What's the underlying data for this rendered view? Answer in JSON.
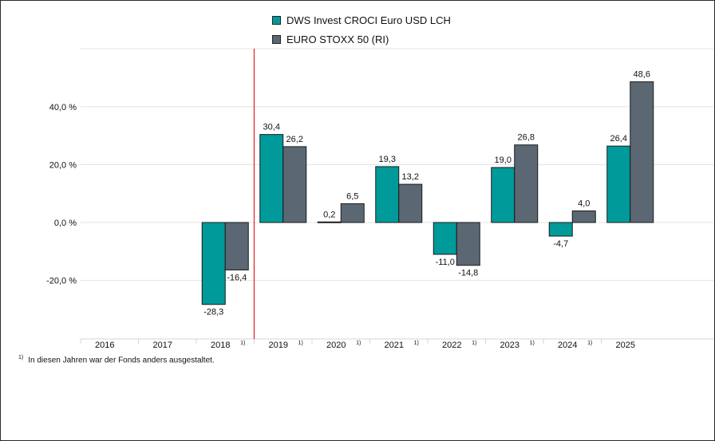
{
  "chart_data": {
    "type": "bar",
    "categories": [
      "2016",
      "2017",
      "2018",
      "2019",
      "2020",
      "2021",
      "2022",
      "2023",
      "2024",
      "2025"
    ],
    "category_notes": [
      "",
      "",
      "1)",
      "1)",
      "1)",
      "1)",
      "1)",
      "1)",
      "1)",
      ""
    ],
    "series": [
      {
        "name": "DWS Invest CROCI Euro USD LCH",
        "color": "#009a9a",
        "values": [
          null,
          null,
          -28.3,
          30.4,
          0.2,
          19.3,
          -11.0,
          19.0,
          -4.7,
          26.4
        ],
        "labels": [
          "",
          "",
          "-28,3",
          "30,4",
          "0,2",
          "19,3",
          "-11,0",
          "19,0",
          "-4,7",
          "26,4"
        ]
      },
      {
        "name": "EURO STOXX 50 (RI)",
        "color": "#5b6874",
        "values": [
          null,
          null,
          -16.4,
          26.2,
          6.5,
          13.2,
          -14.8,
          26.8,
          4.0,
          48.6
        ],
        "labels": [
          "",
          "",
          "-16,4",
          "26,2",
          "6,5",
          "13,2",
          "-14,8",
          "26,8",
          "4,0",
          "48,6"
        ]
      }
    ],
    "yticks": [
      {
        "value": 40,
        "label": "40,0 %"
      },
      {
        "value": 20,
        "label": "20,0 %"
      },
      {
        "value": 0,
        "label": "0,0 %"
      },
      {
        "value": -20,
        "label": "-20,0 %"
      }
    ],
    "ylim": [
      -40,
      60
    ],
    "grid": true,
    "legend_position": "top-center",
    "marker_line_after": "2018",
    "marker_color": "#e02020"
  },
  "footnote": {
    "marker": "1)",
    "text": "In diesen Jahren war der Fonds anders ausgestaltet."
  }
}
